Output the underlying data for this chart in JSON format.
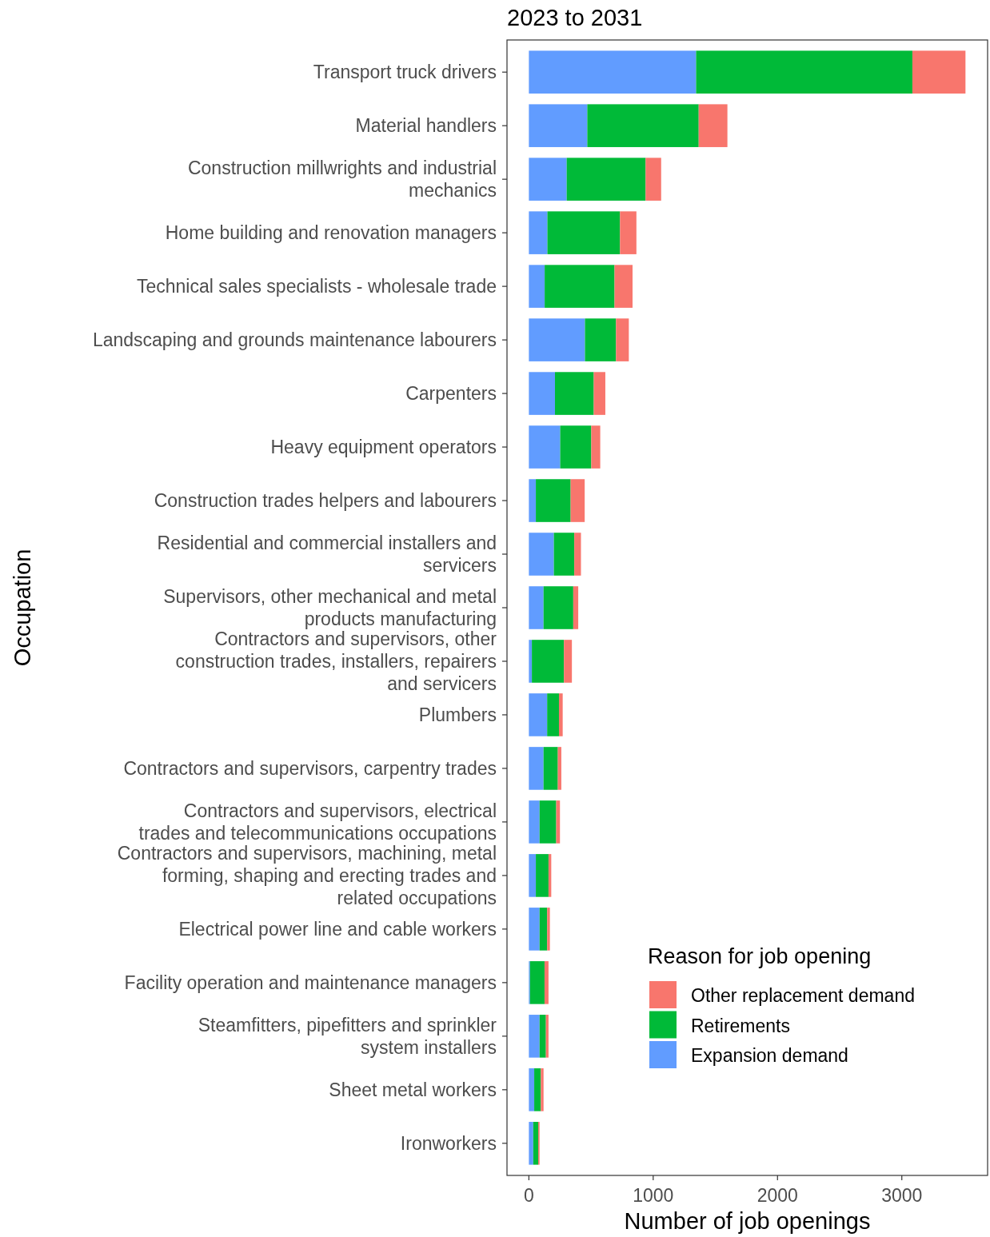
{
  "chart_data": {
    "type": "bar",
    "orientation": "horizontal",
    "stacked": true,
    "title": "2023 to 2031",
    "xlabel": "Number of job openings",
    "ylabel": "Occupation",
    "legend_title": "Reason for job opening",
    "legend": "bottom right",
    "grid": false,
    "categories": [
      "Transport truck drivers",
      "Material handlers",
      "Construction millwrights and industrial mechanics",
      "Home building and renovation managers",
      "Technical sales specialists - wholesale trade",
      "Landscaping and grounds maintenance labourers",
      "Carpenters",
      "Heavy equipment operators",
      "Construction trades helpers and labourers",
      "Residential and commercial installers and servicers",
      "Supervisors, other mechanical and metal products manufacturing",
      "Contractors and supervisors, other construction trades, installers, repairers and servicers",
      "Plumbers",
      "Contractors and supervisors, carpentry trades",
      "Contractors and supervisors, electrical trades and telecommunications occupations",
      "Contractors and supervisors, machining, metal forming, shaping and erecting trades and related occupations",
      "Electrical power line and cable workers",
      "Facility operation and maintenance managers",
      "Steamfitters, pipefitters and sprinkler system installers",
      "Sheet metal workers",
      "Ironworkers"
    ],
    "series": [
      {
        "name": "Expansion demand",
        "color": "#619cff",
        "values": [
          1345,
          470,
          304,
          149,
          127,
          451,
          210,
          252,
          56,
          201,
          118,
          24,
          147,
          118,
          86,
          56,
          86,
          9,
          86,
          43,
          35
        ]
      },
      {
        "name": "Retirements",
        "color": "#00ba38",
        "values": [
          1740,
          896,
          635,
          584,
          562,
          250,
          312,
          250,
          280,
          164,
          239,
          258,
          95,
          115,
          134,
          102,
          61,
          117,
          51,
          53,
          40
        ]
      },
      {
        "name": "Other replacement demand",
        "color": "#f8766d",
        "values": [
          427,
          231,
          125,
          132,
          145,
          103,
          93,
          72,
          113,
          54,
          40,
          64,
          30,
          28,
          30,
          22,
          22,
          32,
          21,
          22,
          11
        ]
      }
    ],
    "xlim": [
      -176,
      3690
    ],
    "xticks": [
      0,
      1000,
      2000,
      3000
    ]
  }
}
